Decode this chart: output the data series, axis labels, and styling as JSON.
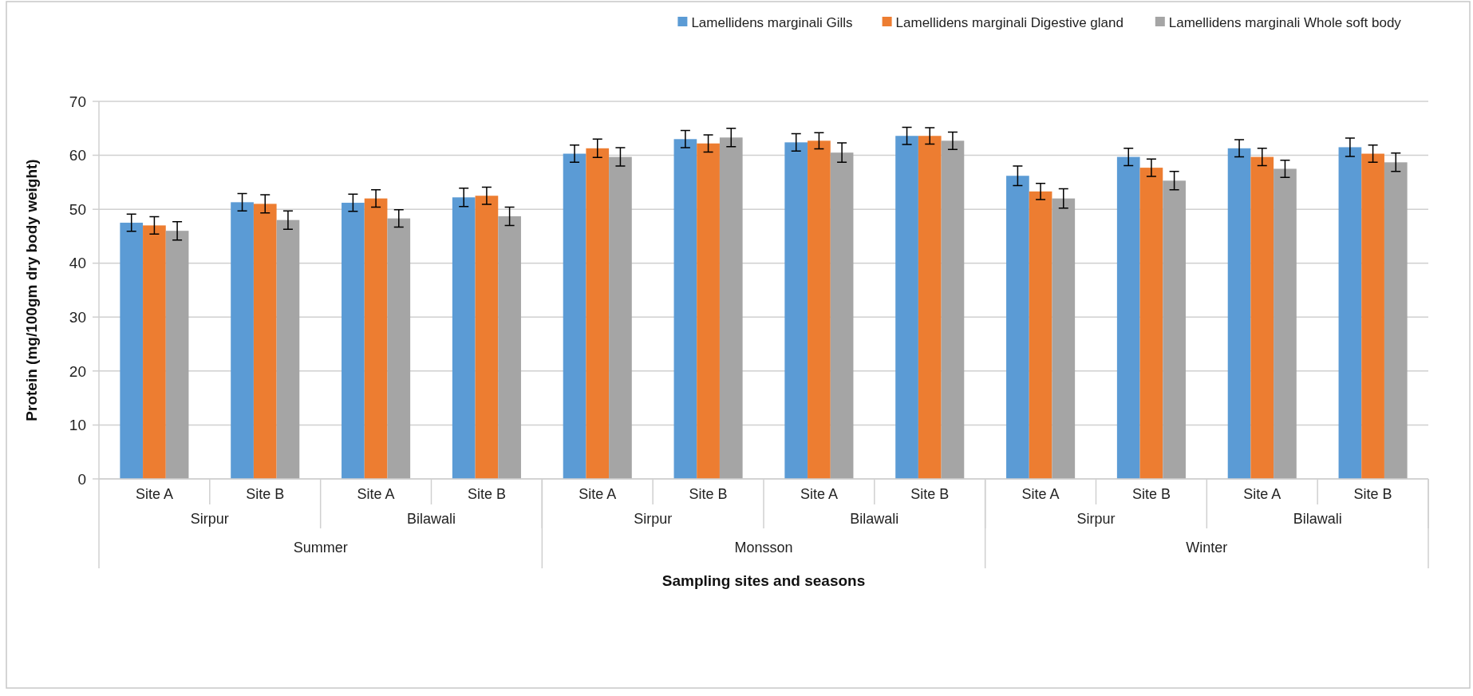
{
  "chart_data": {
    "type": "bar",
    "xlabel": "Sampling sites and seasons",
    "ylabel": "Protein (mg/100gm dry body weight)",
    "categories": [
      "Site A",
      "Site B",
      "Site A",
      "Site B",
      "Site A",
      "Site B",
      "Site A",
      "Site B",
      "Site A",
      "Site B",
      "Site A",
      "Site B"
    ],
    "annotations": [
      "Sirpur",
      "Bilawali",
      "Sirpur",
      "Bilawali",
      "Sirpur",
      "Bilawali",
      "Summer",
      "Monsson",
      "Winter"
    ],
    "series": [
      {
        "name": "Lamellidens marginali Gills",
        "color": "#5b9bd5",
        "values": [
          47.5,
          51.3,
          51.2,
          52.2,
          60.3,
          63,
          62.4,
          63.6,
          56.2,
          59.7,
          61.3,
          61.5
        ],
        "errors": [
          1.6,
          1.6,
          1.6,
          1.7,
          1.6,
          1.6,
          1.6,
          1.6,
          1.8,
          1.6,
          1.6,
          1.7
        ]
      },
      {
        "name": "Lamellidens marginali Digestive gland",
        "color": "#ed7d31",
        "values": [
          47,
          51,
          52,
          52.5,
          61.3,
          62.2,
          62.7,
          63.6,
          53.3,
          57.7,
          59.7,
          60.3
        ],
        "errors": [
          1.6,
          1.7,
          1.6,
          1.6,
          1.7,
          1.6,
          1.5,
          1.5,
          1.5,
          1.6,
          1.6,
          1.6
        ]
      },
      {
        "name": "Lamellidens marginali Whole soft body",
        "color": "#a5a5a5",
        "values": [
          46,
          48,
          48.3,
          48.7,
          59.7,
          63.3,
          60.5,
          62.7,
          52,
          55.3,
          57.5,
          58.7
        ],
        "errors": [
          1.7,
          1.7,
          1.6,
          1.7,
          1.7,
          1.7,
          1.8,
          1.6,
          1.8,
          1.7,
          1.6,
          1.7
        ]
      }
    ],
    "ylim": [
      0,
      70
    ],
    "yticks": [
      0,
      10,
      20,
      30,
      40,
      50,
      60,
      70
    ],
    "grid": "y",
    "legend": "top right"
  }
}
